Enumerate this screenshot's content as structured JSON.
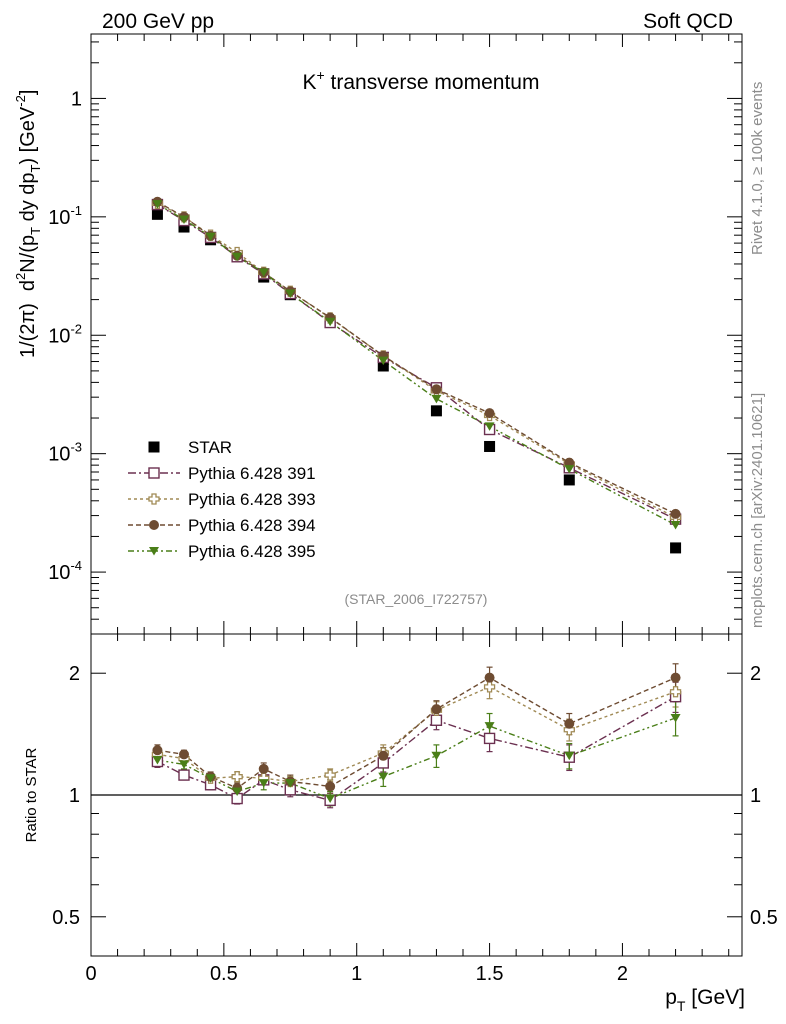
{
  "header": {
    "left": "200 GeV pp",
    "right": "Soft QCD"
  },
  "side": {
    "rivet": "Rivet 4.1.0, ≥ 100k events",
    "mcplots": "mcplots.cern.ch [arXiv:2401.10621]"
  },
  "chart_data": [
    {
      "type": "scatter",
      "title": "K⁺ transverse momentum",
      "title_main": "K",
      "title_sup": "+",
      "title_rest": " transverse momentum",
      "watermark": "(STAR_2006_I722757)",
      "yscale": "log",
      "ylim": [
        3e-05,
        3.5
      ],
      "xlim": [
        0,
        2.45
      ],
      "ylabel": {
        "lead": "1/(2π)",
        "d": "d",
        "d_sup": "2",
        "n_open": "N/(p",
        "sub1": "T",
        "mid": " dy dp",
        "sub2": "T",
        "close": ") [GeV",
        "sup2": "-2",
        "end": "]"
      },
      "yticks": [
        {
          "v": 1,
          "base": "1",
          "exp": ""
        },
        {
          "v": 0.1,
          "base": "10",
          "exp": "-1"
        },
        {
          "v": 0.01,
          "base": "10",
          "exp": "-2"
        },
        {
          "v": 0.001,
          "base": "10",
          "exp": "-3"
        },
        {
          "v": 0.0001,
          "base": "10",
          "exp": "-4"
        }
      ],
      "x": [
        0.25,
        0.35,
        0.45,
        0.55,
        0.65,
        0.75,
        0.9,
        1.1,
        1.3,
        1.5,
        1.8,
        2.2
      ],
      "series": [
        {
          "name": "STAR",
          "marker": "square-filled",
          "color": "#000000",
          "dash": "",
          "values": [
            0.105,
            0.082,
            0.064,
            0.047,
            0.031,
            0.022,
            0.0132,
            0.0055,
            0.0023,
            0.00115,
            0.0006,
            0.00016
          ]
        },
        {
          "name": "Pythia 6.428 391",
          "marker": "square-open",
          "color": "#6b3050",
          "dash": "8,3,2,3",
          "values": [
            0.127,
            0.093,
            0.067,
            0.046,
            0.033,
            0.0225,
            0.0128,
            0.0065,
            0.0036,
            0.0016,
            0.00076,
            0.00028
          ]
        },
        {
          "name": "Pythia 6.428 393",
          "marker": "cross-open",
          "color": "#a08a55",
          "dash": "3,3",
          "values": [
            0.13,
            0.1,
            0.07,
            0.05,
            0.034,
            0.0235,
            0.014,
            0.0067,
            0.0034,
            0.0021,
            0.00082,
            0.00029
          ]
        },
        {
          "name": "Pythia 6.428 394",
          "marker": "circle-filled",
          "color": "#6e4c32",
          "dash": "5,3",
          "values": [
            0.134,
            0.1,
            0.069,
            0.047,
            0.034,
            0.0235,
            0.0141,
            0.0067,
            0.0035,
            0.0022,
            0.00084,
            0.00031
          ]
        },
        {
          "name": "Pythia 6.428 395",
          "marker": "triangle-down-filled",
          "color": "#4a7e18",
          "dash": "6,3,2,3,2,3",
          "values": [
            0.128,
            0.095,
            0.068,
            0.046,
            0.034,
            0.0225,
            0.013,
            0.0061,
            0.0029,
            0.0017,
            0.00074,
            0.00025
          ]
        }
      ]
    },
    {
      "type": "scatter",
      "ylabel": "Ratio to STAR",
      "xlabel": "p",
      "xlabel_sub": "T",
      "xlabel_unit": " [GeV]",
      "yscale": "log",
      "ylim": [
        0.4,
        2.5
      ],
      "xlim": [
        0,
        2.45
      ],
      "reference_line": 1,
      "yticks": [
        {
          "v": 0.5,
          "label": "0.5"
        },
        {
          "v": 1,
          "label": "1"
        },
        {
          "v": 2,
          "label": "2"
        }
      ],
      "xticks": [
        {
          "v": 0,
          "label": "0"
        },
        {
          "v": 0.5,
          "label": "0.5"
        },
        {
          "v": 1,
          "label": "1"
        },
        {
          "v": 1.5,
          "label": "1.5"
        },
        {
          "v": 2,
          "label": "2"
        }
      ],
      "x": [
        0.25,
        0.35,
        0.45,
        0.55,
        0.65,
        0.75,
        0.9,
        1.1,
        1.3,
        1.5,
        1.8,
        2.2
      ],
      "series": [
        {
          "name": "Pythia 6.428 391",
          "marker": "square-open",
          "color": "#6b3050",
          "dash": "8,3,2,3",
          "values": [
            1.21,
            1.12,
            1.06,
            0.98,
            1.09,
            1.03,
            0.97,
            1.2,
            1.53,
            1.38,
            1.24,
            1.75
          ],
          "errors": [
            0.04,
            0.03,
            0.03,
            0.03,
            0.03,
            0.04,
            0.04,
            0.06,
            0.08,
            0.1,
            0.09,
            0.15
          ]
        },
        {
          "name": "Pythia 6.428 393",
          "marker": "cross-open",
          "color": "#a08a55",
          "dash": "3,3",
          "values": [
            1.26,
            1.23,
            1.1,
            1.11,
            1.1,
            1.08,
            1.12,
            1.27,
            1.62,
            1.85,
            1.45,
            1.8
          ],
          "errors": [
            0.04,
            0.03,
            0.03,
            0.03,
            0.04,
            0.04,
            0.04,
            0.06,
            0.08,
            0.12,
            0.09,
            0.15
          ]
        },
        {
          "name": "Pythia 6.428 394",
          "marker": "circle-filled",
          "color": "#6e4c32",
          "dash": "5,3",
          "values": [
            1.29,
            1.26,
            1.11,
            1.04,
            1.16,
            1.08,
            1.05,
            1.25,
            1.63,
            1.95,
            1.5,
            1.95
          ],
          "errors": [
            0.04,
            0.03,
            0.03,
            0.03,
            0.04,
            0.04,
            0.04,
            0.06,
            0.08,
            0.12,
            0.09,
            0.16
          ]
        },
        {
          "name": "Pythia 6.428 395",
          "marker": "triangle-down-filled",
          "color": "#4a7e18",
          "dash": "6,3,2,3,2,3",
          "values": [
            1.22,
            1.19,
            1.1,
            1.02,
            1.07,
            1.07,
            0.98,
            1.11,
            1.25,
            1.48,
            1.25,
            1.55
          ],
          "errors": [
            0.04,
            0.03,
            0.03,
            0.03,
            0.04,
            0.04,
            0.04,
            0.06,
            0.08,
            0.11,
            0.09,
            0.15
          ]
        }
      ]
    }
  ]
}
